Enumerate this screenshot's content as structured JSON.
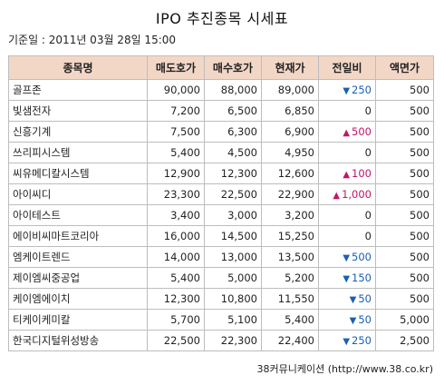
{
  "page": {
    "title": "IPO 추진종목 시세표",
    "base_date": "기준일 : 2011년 03월 28일 15:00",
    "source": "38커뮤니케이션 (http://www.38.co.kr)"
  },
  "colors": {
    "header_bg": "#f2d7c7",
    "up": "#c0166a",
    "down": "#1a5fb4",
    "border": "#bdbdbd"
  },
  "table": {
    "headers": [
      "종목명",
      "매도호가",
      "매수호가",
      "현재가",
      "전일비",
      "액면가"
    ],
    "rows": [
      {
        "name": "골프존",
        "ask": "90,000",
        "bid": "88,000",
        "price": "89,000",
        "dir": "down",
        "arrow": "▼",
        "change": "250",
        "par": "500"
      },
      {
        "name": "빛샘전자",
        "ask": "7,200",
        "bid": "6,500",
        "price": "6,850",
        "dir": "flat",
        "arrow": "",
        "change": "0",
        "par": "500"
      },
      {
        "name": "신흥기계",
        "ask": "7,500",
        "bid": "6,300",
        "price": "6,900",
        "dir": "up",
        "arrow": "▲",
        "change": "500",
        "par": "500"
      },
      {
        "name": "쓰리피시스템",
        "ask": "5,400",
        "bid": "4,500",
        "price": "4,950",
        "dir": "flat",
        "arrow": "",
        "change": "0",
        "par": "500"
      },
      {
        "name": "씨유메디칼시스템",
        "ask": "12,900",
        "bid": "12,300",
        "price": "12,600",
        "dir": "up",
        "arrow": "▲",
        "change": "100",
        "par": "500"
      },
      {
        "name": "아이씨디",
        "ask": "23,300",
        "bid": "22,500",
        "price": "22,900",
        "dir": "up",
        "arrow": "▲",
        "change": "1,000",
        "par": "500"
      },
      {
        "name": "아이테스트",
        "ask": "3,400",
        "bid": "3,000",
        "price": "3,200",
        "dir": "flat",
        "arrow": "",
        "change": "0",
        "par": "500"
      },
      {
        "name": "에이비씨마트코리아",
        "ask": "16,000",
        "bid": "14,500",
        "price": "15,250",
        "dir": "flat",
        "arrow": "",
        "change": "0",
        "par": "500"
      },
      {
        "name": "엠케이트렌드",
        "ask": "14,000",
        "bid": "13,000",
        "price": "13,500",
        "dir": "down",
        "arrow": "▼",
        "change": "500",
        "par": "500"
      },
      {
        "name": "제이엠씨중공업",
        "ask": "5,400",
        "bid": "5,000",
        "price": "5,200",
        "dir": "down",
        "arrow": "▼",
        "change": "150",
        "par": "500"
      },
      {
        "name": "케이엠에이치",
        "ask": "12,300",
        "bid": "10,800",
        "price": "11,550",
        "dir": "down",
        "arrow": "▼",
        "change": "50",
        "par": "500"
      },
      {
        "name": "티케이케미칼",
        "ask": "5,700",
        "bid": "5,100",
        "price": "5,400",
        "dir": "down",
        "arrow": "▼",
        "change": "50",
        "par": "5,000"
      },
      {
        "name": "한국디지털위성방송",
        "ask": "22,500",
        "bid": "22,300",
        "price": "22,400",
        "dir": "down",
        "arrow": "▼",
        "change": "250",
        "par": "2,500"
      }
    ]
  }
}
